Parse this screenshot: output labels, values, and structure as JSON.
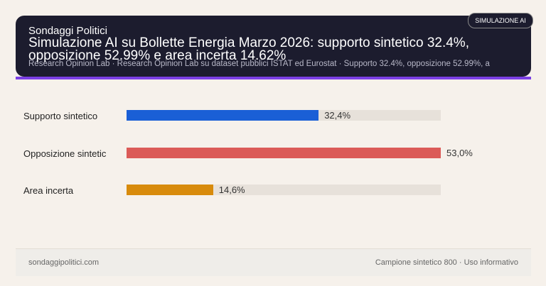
{
  "header": {
    "brand": "Sondaggi Politici",
    "title": "Simulazione AI su Bollette Energia Marzo 2026: supporto sintetico 32.4%, opposizione 52.99% e area incerta 14.62%",
    "subtitle": "Research Opinion Lab · Research Opinion Lab su dataset pubblici ISTAT ed Eurostat · Supporto 32.4%, opposizione 52.99%, a",
    "badge": "SIMULAZIONE AI"
  },
  "chart_data": {
    "type": "bar",
    "orientation": "horizontal",
    "categories": [
      "Supporto sintetico",
      "Opposizione sintetic",
      "Area incerta"
    ],
    "values": [
      32.4,
      53.0,
      14.6
    ],
    "value_labels": [
      "32,4%",
      "53,0%",
      "14,6%"
    ],
    "colors": [
      "#1a5fd6",
      "#db5b58",
      "#d88b0c"
    ],
    "xlim": [
      0,
      53.0
    ],
    "grid": false
  },
  "footer": {
    "left": "sondaggipolitici.com",
    "right": "Campione sintetico 800 · Uso informativo"
  }
}
